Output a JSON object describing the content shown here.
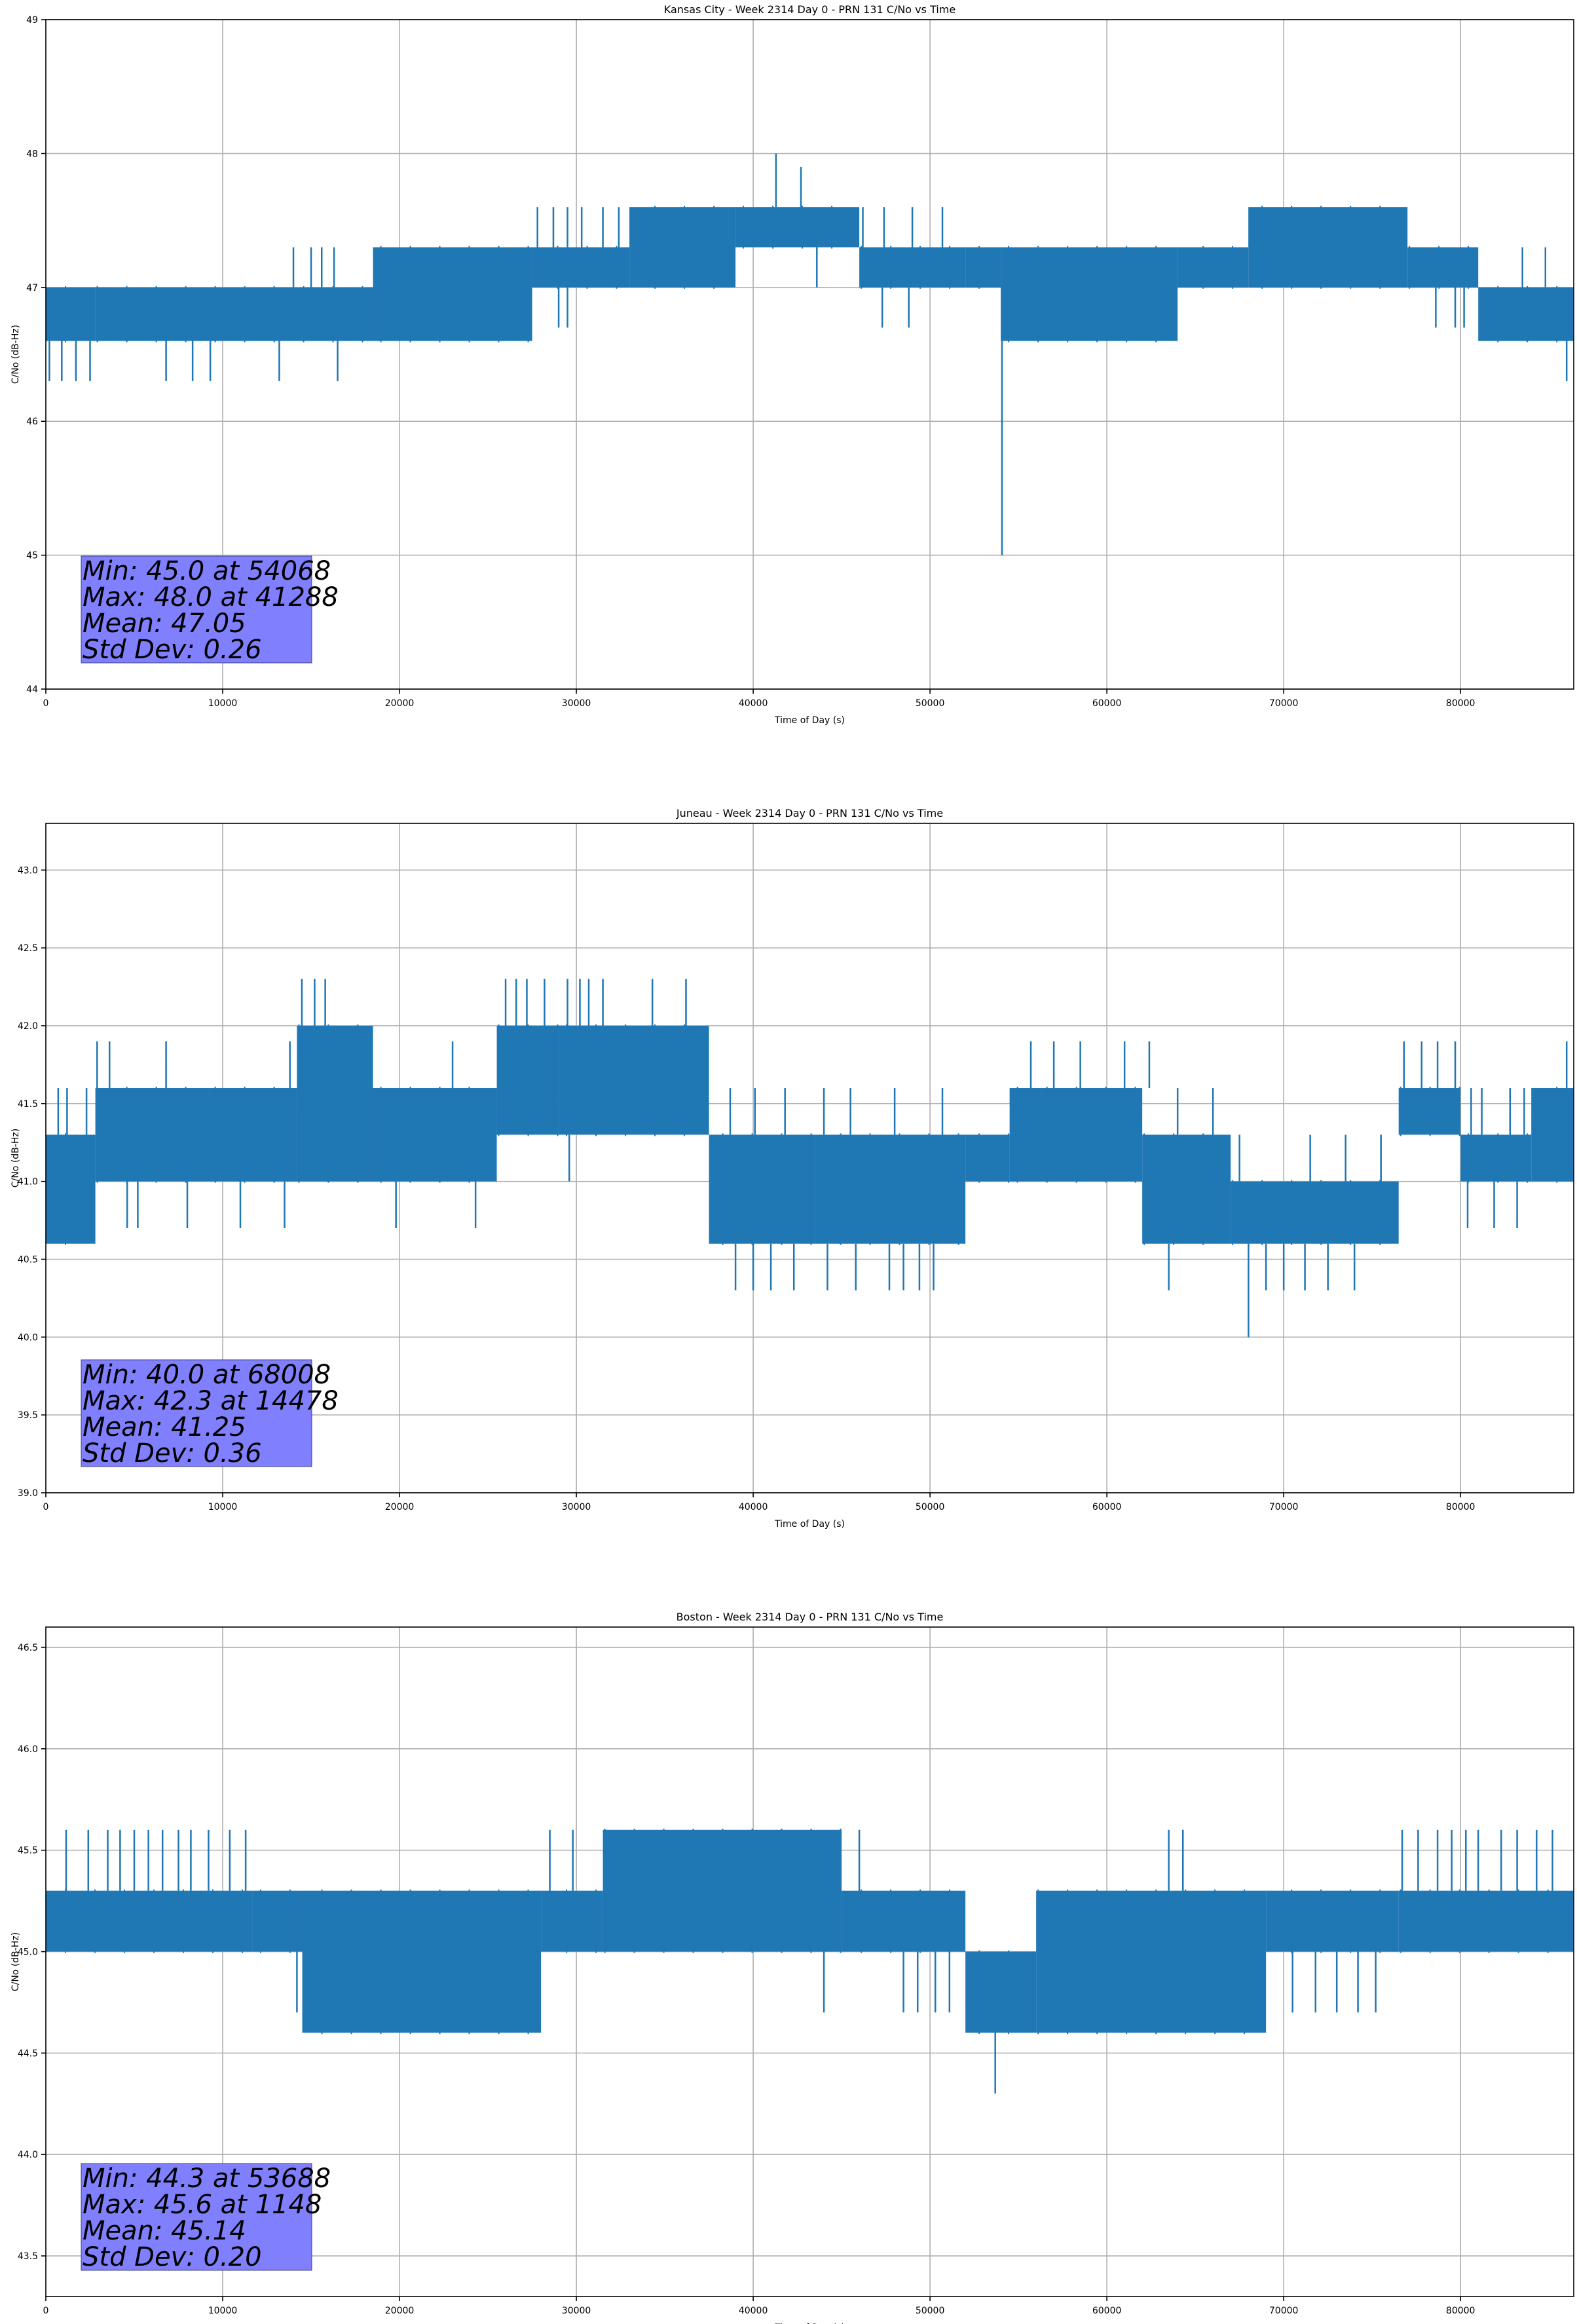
{
  "chart_data": [
    {
      "type": "line",
      "title": "Kansas City - Week 2314 Day 0 - PRN 131 C/No vs Time",
      "xlabel": "Time of Day (s)",
      "ylabel": "C/No (dB-Hz)",
      "xlim": [
        0,
        86400
      ],
      "ylim": [
        44,
        49
      ],
      "x_ticks": [
        0,
        10000,
        20000,
        30000,
        40000,
        50000,
        60000,
        70000,
        80000
      ],
      "y_ticks": [
        44,
        45,
        46,
        47,
        48,
        49
      ],
      "y_tick_decimals": 0,
      "grid": true,
      "line_color": "#1f77b4",
      "resolution": 0.3,
      "segments": [
        {
          "x": [
            0,
            2800
          ],
          "low": 46.6,
          "high": 47.0,
          "spikes_up": [],
          "spikes_down": [
            200,
            900,
            1700,
            2500
          ]
        },
        {
          "x": [
            2800,
            18500
          ],
          "low": 46.6,
          "high": 47.0,
          "spikes_up": [
            14000,
            15000,
            15600,
            16300
          ],
          "spikes_down": [
            6800,
            8300,
            9300,
            13200,
            16500
          ]
        },
        {
          "x": [
            18500,
            27500
          ],
          "low": 46.6,
          "high": 47.3,
          "spikes_up": [],
          "spikes_down": []
        },
        {
          "x": [
            27500,
            33000
          ],
          "low": 47.0,
          "high": 47.3,
          "spikes_up": [
            27800,
            28700,
            29500,
            30300,
            31500,
            32400
          ],
          "spikes_down": [
            29000,
            29500
          ]
        },
        {
          "x": [
            33000,
            39000
          ],
          "low": 47.0,
          "high": 47.6,
          "spikes_up": [],
          "spikes_down": []
        },
        {
          "x": [
            39000,
            46000
          ],
          "low": 47.3,
          "high": 47.6,
          "spikes_up": [
            41288,
            42700
          ],
          "spikes_down": [
            43600
          ]
        },
        {
          "x": [
            46000,
            52000
          ],
          "low": 47.0,
          "high": 47.3,
          "spikes_up": [
            46200,
            47400,
            49000,
            50700
          ],
          "spikes_down": [
            47300,
            48800
          ]
        },
        {
          "x": [
            52000,
            54000
          ],
          "low": 47.0,
          "high": 47.3,
          "spikes_up": [],
          "spikes_down": [
            54068
          ]
        },
        {
          "x": [
            54000,
            64000
          ],
          "low": 46.6,
          "high": 47.3,
          "spikes_up": [],
          "spikes_down": []
        },
        {
          "x": [
            64000,
            68000
          ],
          "low": 47.0,
          "high": 47.3,
          "spikes_up": [],
          "spikes_down": []
        },
        {
          "x": [
            68000,
            77000
          ],
          "low": 47.0,
          "high": 47.6,
          "spikes_up": [],
          "spikes_down": []
        },
        {
          "x": [
            77000,
            81000
          ],
          "low": 47.0,
          "high": 47.3,
          "spikes_up": [],
          "spikes_down": [
            78600,
            79700,
            80200
          ]
        },
        {
          "x": [
            81000,
            86400
          ],
          "low": 46.6,
          "high": 47.0,
          "spikes_up": [
            83500,
            84800
          ],
          "spikes_down": [
            86000
          ]
        }
      ],
      "stats": {
        "min": "Min: 45.0 at 54068",
        "max": "Max: 48.0 at 41288",
        "mean": "Mean: 47.05",
        "std": "Std Dev: 0.26"
      }
    },
    {
      "type": "line",
      "title": "Juneau - Week 2314 Day 0 - PRN 131 C/No vs Time",
      "xlabel": "Time of Day (s)",
      "ylabel": "C/No (dB-Hz)",
      "xlim": [
        0,
        86400
      ],
      "ylim": [
        39.0,
        43.3
      ],
      "x_ticks": [
        0,
        10000,
        20000,
        30000,
        40000,
        50000,
        60000,
        70000,
        80000
      ],
      "y_ticks": [
        39.0,
        39.5,
        40.0,
        40.5,
        41.0,
        41.5,
        42.0,
        42.5,
        43.0
      ],
      "y_tick_decimals": 1,
      "grid": true,
      "line_color": "#1f77b4",
      "resolution": 0.3,
      "segments": [
        {
          "x": [
            0,
            2800
          ],
          "low": 40.6,
          "high": 41.3,
          "spikes_up": [
            700,
            1200,
            2300
          ],
          "spikes_down": []
        },
        {
          "x": [
            2800,
            14200
          ],
          "low": 41.0,
          "high": 41.6,
          "spikes_up": [
            2900,
            3600,
            6800,
            13800
          ],
          "spikes_down": [
            4600,
            5200,
            8000,
            11000,
            13500
          ]
        },
        {
          "x": [
            14200,
            18500
          ],
          "low": 41.0,
          "high": 42.0,
          "spikes_up": [
            14478,
            15200,
            15800
          ],
          "spikes_down": []
        },
        {
          "x": [
            18500,
            25500
          ],
          "low": 41.0,
          "high": 41.6,
          "spikes_up": [
            23000
          ],
          "spikes_down": [
            19800,
            24300
          ]
        },
        {
          "x": [
            25500,
            29000
          ],
          "low": 41.3,
          "high": 42.0,
          "spikes_up": [
            26000,
            26600,
            27200,
            28200
          ],
          "spikes_down": []
        },
        {
          "x": [
            29000,
            37500
          ],
          "low": 41.3,
          "high": 42.0,
          "spikes_up": [
            29500,
            30200,
            30700,
            31500,
            34300,
            36200
          ],
          "spikes_down": [
            29600
          ]
        },
        {
          "x": [
            37500,
            43500
          ],
          "low": 40.6,
          "high": 41.3,
          "spikes_up": [
            38700,
            40100,
            41800
          ],
          "spikes_down": [
            39000,
            40000,
            41000,
            42300
          ]
        },
        {
          "x": [
            43500,
            52000
          ],
          "low": 40.6,
          "high": 41.3,
          "spikes_up": [
            44000,
            45500,
            48000,
            50700
          ],
          "spikes_down": [
            44200,
            45800,
            47700,
            48500,
            49400,
            50200
          ]
        },
        {
          "x": [
            52000,
            54500
          ],
          "low": 41.0,
          "high": 41.3,
          "spikes_up": [],
          "spikes_down": []
        },
        {
          "x": [
            54500,
            62000
          ],
          "low": 41.0,
          "high": 41.6,
          "spikes_up": [
            55700,
            57000,
            58500,
            61000,
            62400
          ],
          "spikes_down": []
        },
        {
          "x": [
            62000,
            67000
          ],
          "low": 40.6,
          "high": 41.3,
          "spikes_up": [
            64000,
            66000
          ],
          "spikes_down": [
            63500
          ]
        },
        {
          "x": [
            67000,
            76500
          ],
          "low": 40.6,
          "high": 41.0,
          "spikes_up": [
            67500,
            71500,
            73500,
            75500
          ],
          "spikes_down": [
            68008,
            69000,
            70000,
            71200,
            72500,
            74000
          ]
        },
        {
          "x": [
            76500,
            80000
          ],
          "low": 41.3,
          "high": 41.6,
          "spikes_up": [
            76800,
            77800,
            78700,
            79700
          ],
          "spikes_down": []
        },
        {
          "x": [
            80000,
            84000
          ],
          "low": 41.0,
          "high": 41.3,
          "spikes_up": [
            80600,
            81200,
            82800,
            83600
          ],
          "spikes_down": [
            80400,
            81900,
            83200
          ]
        },
        {
          "x": [
            84000,
            86400
          ],
          "low": 41.0,
          "high": 41.6,
          "spikes_up": [
            86000
          ],
          "spikes_down": []
        }
      ],
      "stats": {
        "min": "Min: 40.0 at 68008",
        "max": "Max: 42.3 at 14478",
        "mean": "Mean: 41.25",
        "std": "Std Dev: 0.36"
      }
    },
    {
      "type": "line",
      "title": "Boston - Week 2314 Day 0 - PRN 131 C/No vs Time",
      "xlabel": "Time of Day (s)",
      "ylabel": "C/No (dB-Hz)",
      "xlim": [
        0,
        86400
      ],
      "ylim": [
        43.3,
        46.6
      ],
      "x_ticks": [
        0,
        10000,
        20000,
        30000,
        40000,
        50000,
        60000,
        70000,
        80000
      ],
      "y_ticks": [
        43.5,
        44.0,
        44.5,
        45.0,
        45.5,
        46.0,
        46.5
      ],
      "y_tick_decimals": 1,
      "grid": true,
      "line_color": "#1f77b4",
      "resolution": 0.3,
      "segments": [
        {
          "x": [
            0,
            11700
          ],
          "low": 45.0,
          "high": 45.3,
          "spikes_up": [
            1148,
            2400,
            3500,
            4200,
            5000,
            5800,
            6600,
            7500,
            8200,
            9200,
            10400,
            11300
          ],
          "spikes_down": []
        },
        {
          "x": [
            11700,
            14500
          ],
          "low": 45.0,
          "high": 45.3,
          "spikes_up": [],
          "spikes_down": [
            14200
          ]
        },
        {
          "x": [
            14500,
            28000
          ],
          "low": 44.6,
          "high": 45.3,
          "spikes_up": [],
          "spikes_down": []
        },
        {
          "x": [
            28000,
            31500
          ],
          "low": 45.0,
          "high": 45.3,
          "spikes_up": [
            28500,
            29800
          ],
          "spikes_down": []
        },
        {
          "x": [
            31500,
            45000
          ],
          "low": 45.0,
          "high": 45.6,
          "spikes_up": [],
          "spikes_down": [
            44000
          ]
        },
        {
          "x": [
            45000,
            52000
          ],
          "low": 45.0,
          "high": 45.3,
          "spikes_up": [
            46000
          ],
          "spikes_down": [
            48500,
            49300,
            50300,
            51100
          ]
        },
        {
          "x": [
            52000,
            56000
          ],
          "low": 44.6,
          "high": 45.0,
          "spikes_up": [],
          "spikes_down": [
            53688
          ]
        },
        {
          "x": [
            56000,
            69000
          ],
          "low": 44.6,
          "high": 45.3,
          "spikes_up": [
            63500,
            64300
          ],
          "spikes_down": []
        },
        {
          "x": [
            69000,
            76500
          ],
          "low": 45.0,
          "high": 45.3,
          "spikes_up": [],
          "spikes_down": [
            70500,
            71800,
            73000,
            74200,
            75200
          ]
        },
        {
          "x": [
            76500,
            86400
          ],
          "low": 45.0,
          "high": 45.3,
          "spikes_up": [
            76700,
            77600,
            78700,
            79500,
            80300,
            81000,
            82300,
            83200,
            84300,
            85200
          ],
          "spikes_down": []
        }
      ],
      "stats": {
        "min": "Min: 44.3 at 53688",
        "max": "Max: 45.6 at 1148",
        "mean": "Mean: 45.14",
        "std": "Std Dev: 0.20"
      }
    }
  ]
}
